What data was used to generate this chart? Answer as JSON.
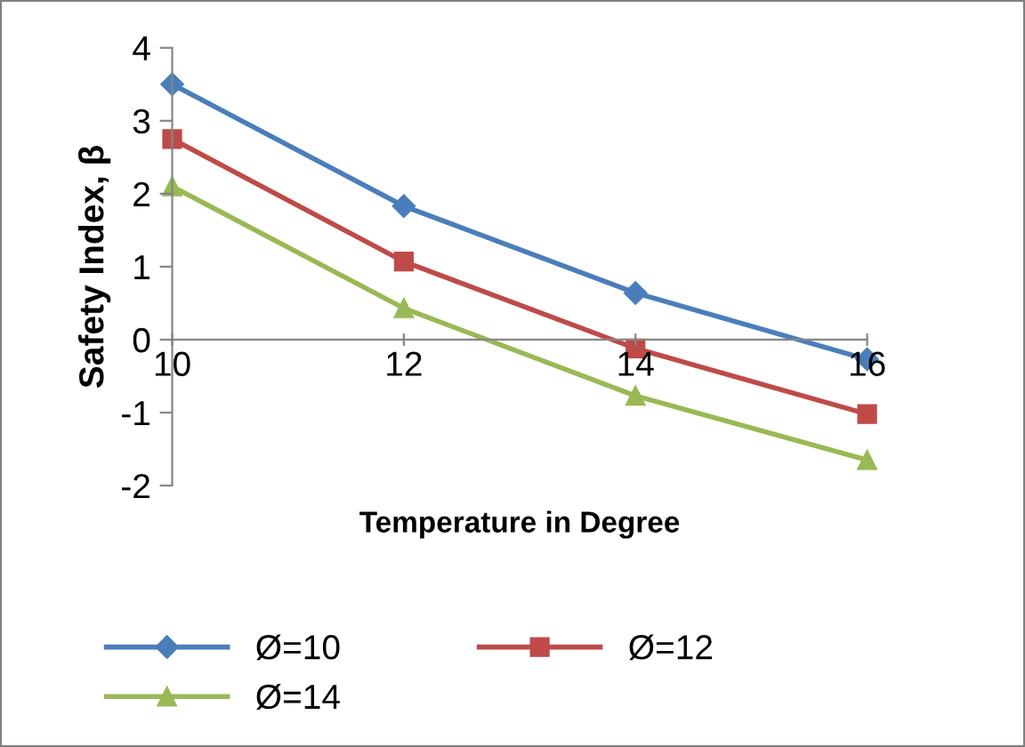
{
  "chart_data": {
    "type": "line",
    "xlabel": "Temperature in Degree",
    "ylabel": "Safety Index, β",
    "x": [
      10,
      12,
      14,
      16
    ],
    "xlim": [
      10,
      16
    ],
    "xticks": [
      10,
      12,
      14,
      16
    ],
    "ylim": [
      -2,
      4
    ],
    "yticks": [
      -2,
      -1,
      0,
      1,
      2,
      3,
      4
    ],
    "grid": false,
    "legend": "bottom",
    "line_style": "solid",
    "series": [
      {
        "name": "Ø=10",
        "color": "#4a7ebb",
        "marker": "diamond",
        "values": [
          3.5,
          1.83,
          0.64,
          -0.27
        ]
      },
      {
        "name": "Ø=12",
        "color": "#be4b48",
        "marker": "square",
        "values": [
          2.75,
          1.07,
          -0.12,
          -1.02
        ]
      },
      {
        "name": "Ø=14",
        "color": "#98b954",
        "marker": "triangle",
        "values": [
          2.1,
          0.43,
          -0.77,
          -1.65
        ]
      }
    ]
  }
}
